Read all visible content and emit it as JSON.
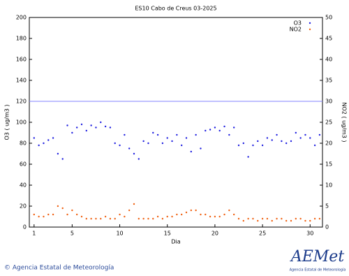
{
  "chart_data": {
    "type": "scatter",
    "title": "ES10 Cabo de Creus 03-2025",
    "xlabel": "Dia",
    "ylabel": "O3 ( ug/m3 )",
    "y2label": "NO2 ( ug/m3 )",
    "x": [
      1,
      1.5,
      2,
      2.5,
      3,
      3.5,
      4,
      4.5,
      5,
      5.5,
      6,
      6.5,
      7,
      7.5,
      8,
      8.5,
      9,
      9.5,
      10,
      10.5,
      11,
      11.5,
      12,
      12.5,
      13,
      13.5,
      14,
      14.5,
      15,
      15.5,
      16,
      16.5,
      17,
      17.5,
      18,
      18.5,
      19,
      19.5,
      20,
      20.5,
      21,
      21.5,
      22,
      22.5,
      23,
      23.5,
      24,
      24.5,
      25,
      25.5,
      26,
      26.5,
      27,
      27.5,
      28,
      28.5,
      29,
      29.5,
      30,
      30.5,
      31
    ],
    "series": [
      {
        "name": "O3",
        "color": "#1f1fe0",
        "values": [
          85,
          78,
          80,
          83,
          85,
          70,
          65,
          97,
          90,
          95,
          98,
          92,
          97,
          95,
          100,
          96,
          95,
          80,
          78,
          88,
          75,
          70,
          65,
          82,
          80,
          90,
          88,
          80,
          85,
          82,
          88,
          78,
          85,
          72,
          88,
          75,
          92,
          93,
          95,
          92,
          96,
          88,
          95,
          78,
          80,
          67,
          78,
          82,
          78,
          85,
          83,
          88,
          82,
          80,
          82,
          90,
          85,
          88,
          85,
          78,
          88
        ]
      },
      {
        "name": "NO2",
        "color": "#f06010",
        "axis": "y2",
        "values": [
          3,
          2.5,
          2.5,
          3,
          3,
          5,
          4.5,
          3,
          4,
          3,
          2.5,
          2,
          2,
          2,
          2,
          2.5,
          2,
          2,
          3,
          2.5,
          4,
          5.5,
          2,
          2,
          2,
          2,
          2.5,
          2,
          2.5,
          2.5,
          3,
          3,
          3.5,
          4,
          4,
          3,
          3,
          2.5,
          2.5,
          2.5,
          3,
          4,
          3,
          2,
          1.5,
          2,
          2,
          1.5,
          2,
          2,
          1.5,
          2,
          2,
          1.5,
          1.5,
          2,
          2,
          1.5,
          1.5,
          2,
          2
        ]
      }
    ],
    "threshold": 120,
    "threshold_color": "#8080ff",
    "xlim": [
      0.5,
      31.3
    ],
    "xticks": [
      1,
      5,
      10,
      15,
      20,
      25,
      30
    ],
    "ylim": [
      0,
      200
    ],
    "yticks": [
      0,
      20,
      40,
      60,
      80,
      100,
      120,
      140,
      160,
      180,
      200
    ],
    "y2lim": [
      0,
      50
    ],
    "y2ticks": [
      0,
      5,
      10,
      15,
      20,
      25,
      30,
      35,
      40,
      45,
      50
    ],
    "legend": "top-right",
    "footer": "© Agencia Estatal de Meteorología",
    "logo": "AEMet",
    "logo_caption": "Agencia Estatal de Meteorología"
  }
}
